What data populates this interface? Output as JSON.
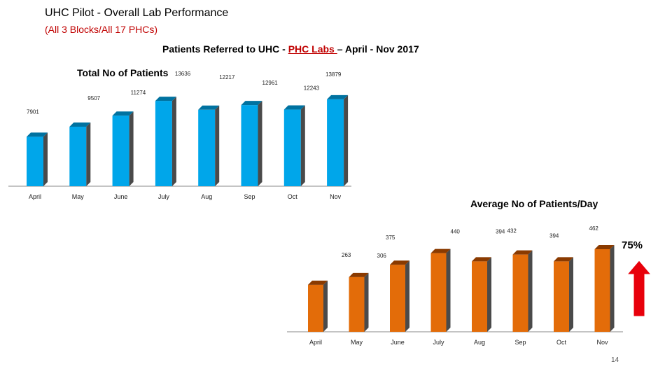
{
  "header": {
    "title": "UHC Pilot - Overall Lab Performance",
    "subtitle": "(All 3 Blocks/All 17 PHCs)",
    "heading_prefix": "Patients Referred to UHC - ",
    "heading_highlight": "PHC Labs ",
    "heading_suffix": "– April - Nov 2017"
  },
  "annotation": {
    "percent": "75%",
    "arrow_color": "#e8000b"
  },
  "page_number": "14",
  "chart_data": [
    {
      "type": "bar",
      "title": "Total No of Patients",
      "categories": [
        "April",
        "May",
        "June",
        "July",
        "Aug",
        "Sep",
        "Oct",
        "Nov"
      ],
      "values": [
        7901,
        9507,
        11274,
        13636,
        12217,
        12961,
        12243,
        13879
      ],
      "color": "#00a6ea",
      "dark_color": "#0072a0",
      "ylim": [
        0,
        16000
      ],
      "grid": false,
      "legend": "none"
    },
    {
      "type": "bar",
      "title": "Average No of Patients/Day",
      "categories": [
        "April",
        "May",
        "June",
        "July",
        "Aug",
        "Sep",
        "Oct",
        "Nov"
      ],
      "values": [
        263,
        306,
        375,
        440,
        394,
        432,
        394,
        462
      ],
      "color": "#e36c09",
      "dark_color": "#8a3a00",
      "ylim": [
        0,
        560
      ],
      "grid": false,
      "legend": "none"
    }
  ]
}
